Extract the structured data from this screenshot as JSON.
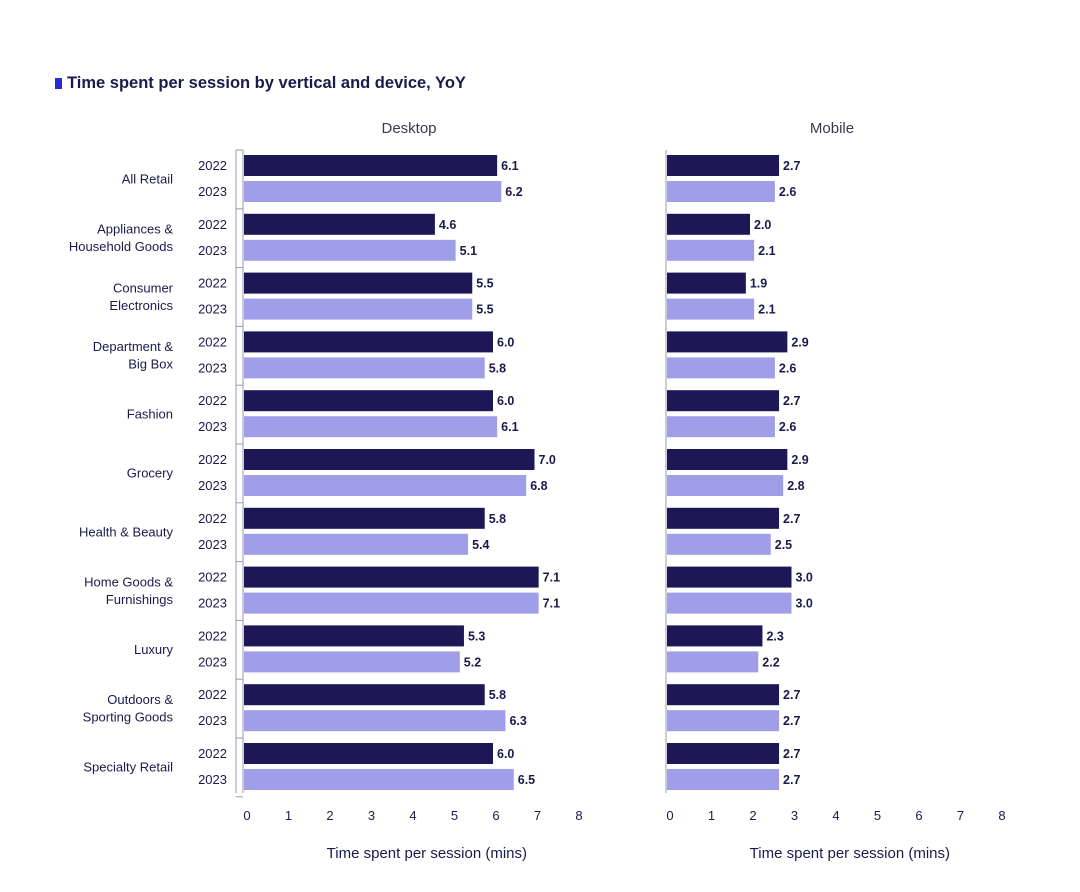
{
  "title": "Time spent per session by vertical and device, YoY",
  "colors": {
    "y2022": "#1d1755",
    "y2023": "#a19ee9",
    "axis": "#9a9ab0",
    "text": "#1c1a4a",
    "marker": "#2a2bd4"
  },
  "chart_data": {
    "type": "bar",
    "orientation": "horizontal",
    "years": [
      "2022",
      "2023"
    ],
    "categories": [
      "All Retail",
      "Appliances & Household Goods",
      "Consumer Electronics",
      "Department & Big Box",
      "Fashion",
      "Grocery",
      "Health & Beauty",
      "Home Goods & Furnishings",
      "Luxury",
      "Outdoors & Sporting Goods",
      "Specialty Retail"
    ],
    "category_label_lines": [
      [
        "All Retail"
      ],
      [
        "Appliances &",
        "Household Goods"
      ],
      [
        "Consumer",
        "Electronics"
      ],
      [
        "Department &",
        "Big Box"
      ],
      [
        "Fashion"
      ],
      [
        "Grocery"
      ],
      [
        "Health & Beauty"
      ],
      [
        "Home Goods &",
        "Furnishings"
      ],
      [
        "Luxury"
      ],
      [
        "Outdoors &",
        "Sporting Goods"
      ],
      [
        "Specialty Retail"
      ]
    ],
    "panels": [
      {
        "name": "Desktop",
        "xlabel": "Time spent per session (mins)",
        "xlim": [
          0,
          8
        ],
        "xticks": [
          "0",
          "1",
          "2",
          "3",
          "4",
          "5",
          "6",
          "7",
          "8"
        ],
        "series": [
          {
            "name": "2022",
            "values": [
              6.1,
              4.6,
              5.5,
              6.0,
              6.0,
              7.0,
              5.8,
              7.1,
              5.3,
              5.8,
              6.0
            ],
            "labels": [
              "6.1",
              "4.6",
              "5.5",
              "6.0",
              "6.0",
              "7.0",
              "5.8",
              "7.1",
              "5.3",
              "5.8",
              "6.0"
            ]
          },
          {
            "name": "2023",
            "values": [
              6.2,
              5.1,
              5.5,
              5.8,
              6.1,
              6.8,
              5.4,
              7.1,
              5.2,
              6.3,
              6.5
            ],
            "labels": [
              "6.2",
              "5.1",
              "5.5",
              "5.8",
              "6.1",
              "6.8",
              "5.4",
              "7.1",
              "5.2",
              "6.3",
              "6.5"
            ]
          }
        ]
      },
      {
        "name": "Mobile",
        "xlabel": "Time spent per session (mins)",
        "xlim": [
          0,
          8
        ],
        "xticks": [
          "0",
          "1",
          "2",
          "3",
          "4",
          "5",
          "6",
          "7",
          "8"
        ],
        "series": [
          {
            "name": "2022",
            "values": [
              2.7,
              2.0,
              1.9,
              2.9,
              2.7,
              2.9,
              2.7,
              3.0,
              2.3,
              2.7,
              2.7
            ],
            "labels": [
              "2.7",
              "2.0",
              "1.9",
              "2.9",
              "2.7",
              "2.9",
              "2.7",
              "3.0",
              "2.3",
              "2.7",
              "2.7"
            ]
          },
          {
            "name": "2023",
            "values": [
              2.6,
              2.1,
              2.1,
              2.6,
              2.6,
              2.8,
              2.5,
              3.0,
              2.2,
              2.7,
              2.7
            ],
            "labels": [
              "2.6",
              "2.1",
              "2.1",
              "2.6",
              "2.6",
              "2.8",
              "2.5",
              "3.0",
              "2.2",
              "2.7",
              "2.7"
            ]
          }
        ]
      }
    ],
    "grid": false,
    "legend": "none"
  }
}
